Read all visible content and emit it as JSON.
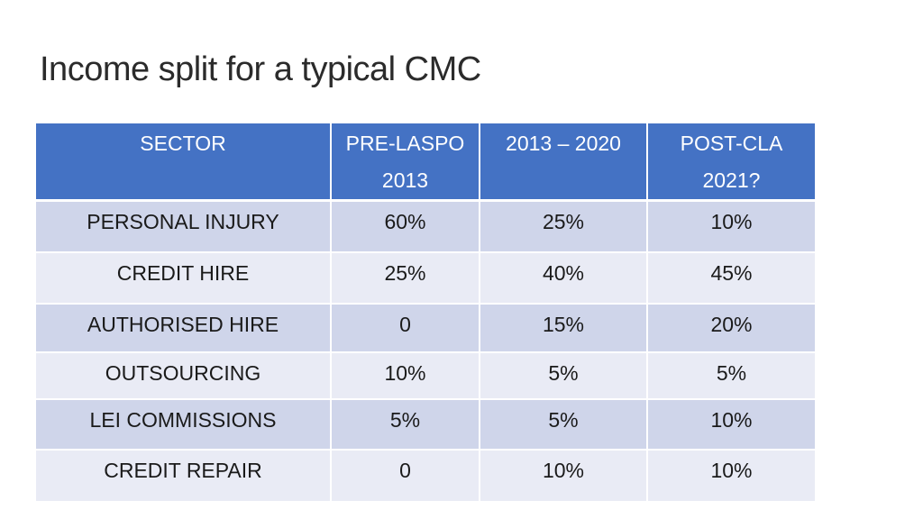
{
  "slide": {
    "title": "Income split for a typical CMC"
  },
  "table": {
    "headers": [
      {
        "line1": "SECTOR",
        "line2": ""
      },
      {
        "line1": "PRE-LASPO",
        "line2": "2013"
      },
      {
        "line1": "2013 – 2020",
        "line2": ""
      },
      {
        "line1": "POST-CLA",
        "line2": "2021?"
      }
    ],
    "rows": [
      {
        "sector": "PERSONAL INJURY",
        "pre_laspo_2013": "60%",
        "y2013_2020": "25%",
        "post_cla_2021": "10%"
      },
      {
        "sector": "CREDIT HIRE",
        "pre_laspo_2013": "25%",
        "y2013_2020": "40%",
        "post_cla_2021": "45%"
      },
      {
        "sector": "AUTHORISED HIRE",
        "pre_laspo_2013": "0",
        "y2013_2020": "15%",
        "post_cla_2021": "20%"
      },
      {
        "sector": "OUTSOURCING",
        "pre_laspo_2013": "10%",
        "y2013_2020": "5%",
        "post_cla_2021": "5%"
      },
      {
        "sector": "LEI COMMISSIONS",
        "pre_laspo_2013": "5%",
        "y2013_2020": "5%",
        "post_cla_2021": "10%"
      },
      {
        "sector": "CREDIT REPAIR",
        "pre_laspo_2013": "0",
        "y2013_2020": "10%",
        "post_cla_2021": "10%"
      }
    ],
    "colors": {
      "header_bg": "#4472c4",
      "header_text": "#ffffff",
      "row_band_dark": "#cfd5ea",
      "row_band_light": "#e9ebf5"
    }
  }
}
